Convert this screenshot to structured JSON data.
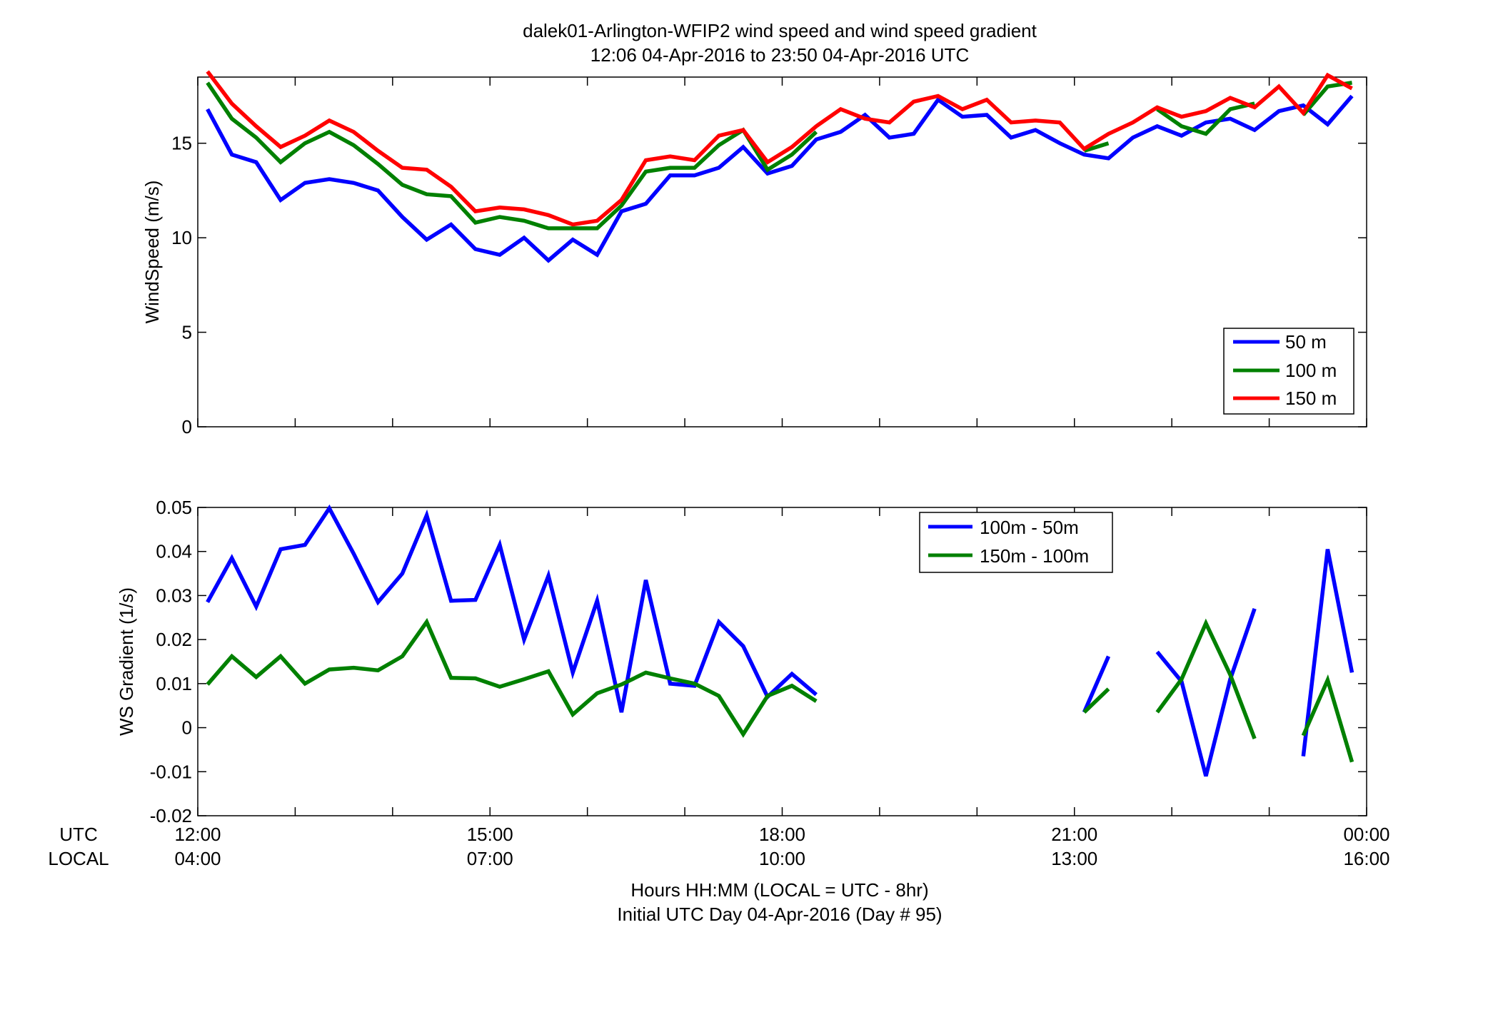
{
  "header": {
    "title": "dalek01-Arlington-WFIP2  wind speed and wind speed gradient",
    "subtitle": "12:06 04-Apr-2016 to 23:50 04-Apr-2016  UTC"
  },
  "time_axis": {
    "row1_label": "UTC",
    "row2_label": "LOCAL",
    "utc_ticks": [
      "12:00",
      "15:00",
      "18:00",
      "21:00",
      "00:00"
    ],
    "local_ticks": [
      "04:00",
      "07:00",
      "10:00",
      "13:00",
      "16:00"
    ],
    "xlabel_line1": "Hours HH:MM  (LOCAL = UTC - 8hr)",
    "xlabel_line2": "Initial UTC Day 04-Apr-2016 (Day # 95)"
  },
  "colors": {
    "blue": "#0000ff",
    "green": "#008000",
    "red": "#ff0000"
  },
  "chart_data": [
    {
      "type": "line",
      "ylabel": "WindSpeed (m/s)",
      "xlim": [
        12.0,
        24.0
      ],
      "ylim": [
        0,
        18.5
      ],
      "yticks": [
        0,
        5,
        10,
        15
      ],
      "grid": false,
      "legend_position": "bottom-right",
      "x": [
        12.1,
        12.35,
        12.6,
        12.85,
        13.1,
        13.35,
        13.6,
        13.85,
        14.1,
        14.35,
        14.6,
        14.85,
        15.1,
        15.35,
        15.6,
        15.85,
        16.1,
        16.35,
        16.6,
        16.85,
        17.1,
        17.35,
        17.6,
        17.85,
        18.1,
        18.35,
        18.6,
        18.85,
        19.1,
        19.35,
        19.6,
        19.85,
        20.1,
        20.35,
        20.6,
        20.85,
        21.1,
        21.35,
        21.6,
        21.85,
        22.1,
        22.35,
        22.6,
        22.85,
        23.1,
        23.35,
        23.6,
        23.85
      ],
      "series": [
        {
          "name": "50 m",
          "color": "#0000ff",
          "values": [
            16.8,
            14.4,
            14.0,
            12.0,
            12.9,
            13.1,
            12.9,
            12.5,
            11.1,
            9.9,
            10.7,
            9.4,
            9.1,
            10.0,
            8.8,
            9.9,
            9.1,
            11.4,
            11.8,
            13.3,
            13.3,
            13.7,
            14.8,
            13.4,
            13.8,
            15.2,
            15.6,
            16.5,
            15.3,
            15.5,
            17.3,
            16.4,
            16.5,
            15.3,
            15.7,
            15.0,
            14.4,
            14.2,
            15.3,
            15.9,
            15.4,
            16.1,
            16.3,
            15.7,
            16.7,
            17.0,
            16.0,
            17.5
          ]
        },
        {
          "name": "100 m",
          "color": "#008000",
          "values": [
            18.2,
            16.3,
            15.3,
            14.0,
            15.0,
            15.6,
            14.9,
            13.9,
            12.8,
            12.3,
            12.2,
            10.8,
            11.1,
            10.9,
            10.5,
            10.5,
            10.5,
            11.7,
            13.5,
            13.7,
            13.7,
            14.9,
            15.7,
            13.6,
            14.4,
            15.6,
            null,
            null,
            null,
            null,
            null,
            null,
            null,
            null,
            null,
            null,
            14.6,
            15.0,
            null,
            16.8,
            15.9,
            15.5,
            16.8,
            17.1,
            null,
            16.5,
            18.0,
            18.2
          ]
        },
        {
          "name": "150 m",
          "color": "#ff0000",
          "values": [
            18.8,
            17.1,
            15.9,
            14.8,
            15.4,
            16.2,
            15.6,
            14.6,
            13.7,
            13.6,
            12.7,
            11.4,
            11.6,
            11.5,
            11.2,
            10.7,
            10.9,
            12.0,
            14.1,
            14.3,
            14.1,
            15.4,
            15.7,
            14.0,
            14.8,
            15.9,
            16.8,
            16.3,
            16.1,
            17.2,
            17.5,
            16.8,
            17.3,
            16.1,
            16.2,
            16.1,
            14.7,
            15.5,
            16.1,
            16.9,
            16.4,
            16.7,
            17.4,
            16.9,
            18.0,
            16.6,
            18.6,
            17.9
          ]
        }
      ]
    },
    {
      "type": "line",
      "ylabel": "WS Gradient (1/s)",
      "xlim": [
        12.0,
        24.0
      ],
      "ylim": [
        -0.02,
        0.05
      ],
      "yticks": [
        -0.02,
        -0.01,
        0,
        0.01,
        0.02,
        0.03,
        0.04,
        0.05
      ],
      "ytick_labels": [
        "-0.02",
        "-0.01",
        "0",
        "0.01",
        "0.02",
        "0.03",
        "0.04",
        "0.05"
      ],
      "grid": false,
      "legend_position": "top-center",
      "x": [
        12.1,
        12.35,
        12.6,
        12.85,
        13.1,
        13.35,
        13.6,
        13.85,
        14.1,
        14.35,
        14.6,
        14.85,
        15.1,
        15.35,
        15.6,
        15.85,
        16.1,
        16.35,
        16.6,
        16.85,
        17.1,
        17.35,
        17.6,
        17.85,
        18.1,
        18.35,
        18.6,
        18.85,
        19.1,
        19.35,
        19.6,
        19.85,
        20.1,
        20.35,
        20.6,
        20.85,
        21.1,
        21.35,
        21.6,
        21.85,
        22.1,
        22.35,
        22.6,
        22.85,
        23.1,
        23.35,
        23.6,
        23.85
      ],
      "series": [
        {
          "name": "100m - 50m",
          "color": "#0000ff",
          "values": [
            0.0285,
            0.0385,
            0.0275,
            0.0405,
            0.0415,
            0.0498,
            0.0395,
            0.0285,
            0.035,
            0.0482,
            0.0288,
            0.029,
            0.0415,
            0.02,
            0.0345,
            0.0125,
            0.0288,
            0.0035,
            0.0335,
            0.01,
            0.0095,
            0.024,
            0.0185,
            0.007,
            0.0122,
            0.0075,
            null,
            null,
            null,
            null,
            null,
            null,
            null,
            null,
            null,
            null,
            0.0035,
            0.0162,
            null,
            0.0172,
            0.0105,
            -0.011,
            0.011,
            0.027,
            null,
            -0.0065,
            0.0405,
            0.0125
          ]
        },
        {
          "name": "150m - 100m",
          "color": "#008000",
          "values": [
            0.0098,
            0.0162,
            0.0115,
            0.0162,
            0.01,
            0.0132,
            0.0136,
            0.013,
            0.0162,
            0.024,
            0.0113,
            0.0112,
            0.0093,
            0.011,
            0.0128,
            0.003,
            0.0078,
            0.0098,
            0.0125,
            0.0112,
            0.01,
            0.0072,
            -0.0015,
            0.0072,
            0.0095,
            0.006,
            null,
            null,
            null,
            null,
            null,
            null,
            null,
            null,
            null,
            null,
            0.0035,
            0.0088,
            null,
            0.0035,
            0.011,
            0.0237,
            0.012,
            -0.0025,
            null,
            -0.0018,
            0.0108,
            -0.0078
          ]
        }
      ]
    }
  ]
}
